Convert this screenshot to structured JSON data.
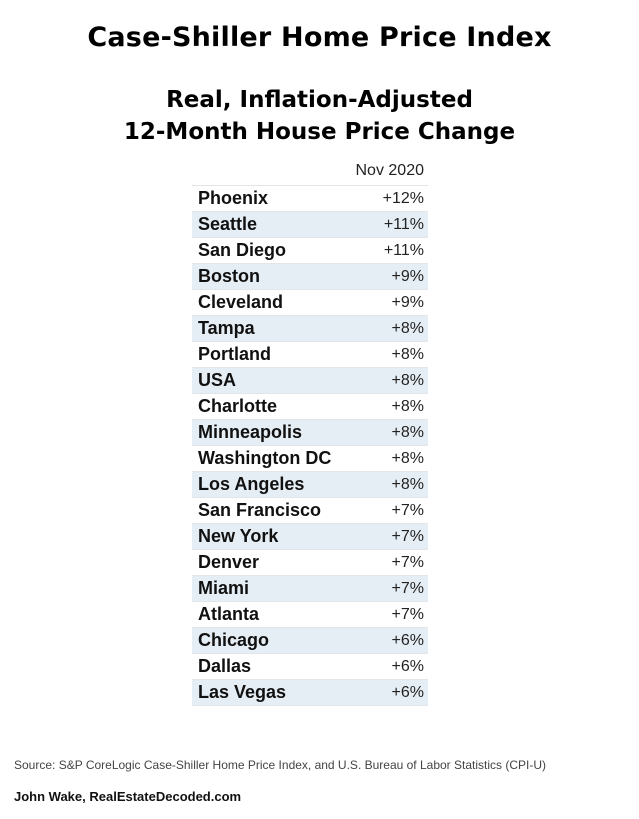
{
  "chart_data": {
    "type": "table",
    "title": "Case-Shiller Home Price Index",
    "subtitle_lines": [
      "Real, Inflation-Adjusted",
      "12-Month House Price Change"
    ],
    "column_header": "Nov 2020",
    "rows": [
      {
        "city": "Phoenix",
        "value": "+12%"
      },
      {
        "city": "Seattle",
        "value": "+11%"
      },
      {
        "city": "San Diego",
        "value": "+11%"
      },
      {
        "city": "Boston",
        "value": "+9%"
      },
      {
        "city": "Cleveland",
        "value": "+9%"
      },
      {
        "city": "Tampa",
        "value": "+8%"
      },
      {
        "city": "Portland",
        "value": "+8%"
      },
      {
        "city": "USA",
        "value": "+8%"
      },
      {
        "city": "Charlotte",
        "value": "+8%"
      },
      {
        "city": "Minneapolis",
        "value": "+8%"
      },
      {
        "city": "Washington DC",
        "value": "+8%"
      },
      {
        "city": "Los Angeles",
        "value": "+8%"
      },
      {
        "city": "San Francisco",
        "value": "+7%"
      },
      {
        "city": "New York",
        "value": "+7%"
      },
      {
        "city": "Denver",
        "value": "+7%"
      },
      {
        "city": "Miami",
        "value": "+7%"
      },
      {
        "city": "Atlanta",
        "value": "+7%"
      },
      {
        "city": "Chicago",
        "value": "+6%"
      },
      {
        "city": "Dallas",
        "value": "+6%"
      },
      {
        "city": "Las Vegas",
        "value": "+6%"
      }
    ],
    "source": "Source: S&P CoreLogic Case-Shiller Home Price Index, and U.S. Bureau of Labor Statistics (CPI-U)",
    "credit": "John Wake, RealEstateDecoded.com"
  },
  "colors": {
    "stripe": "#e6eef5",
    "border": "#e2e6ea"
  }
}
